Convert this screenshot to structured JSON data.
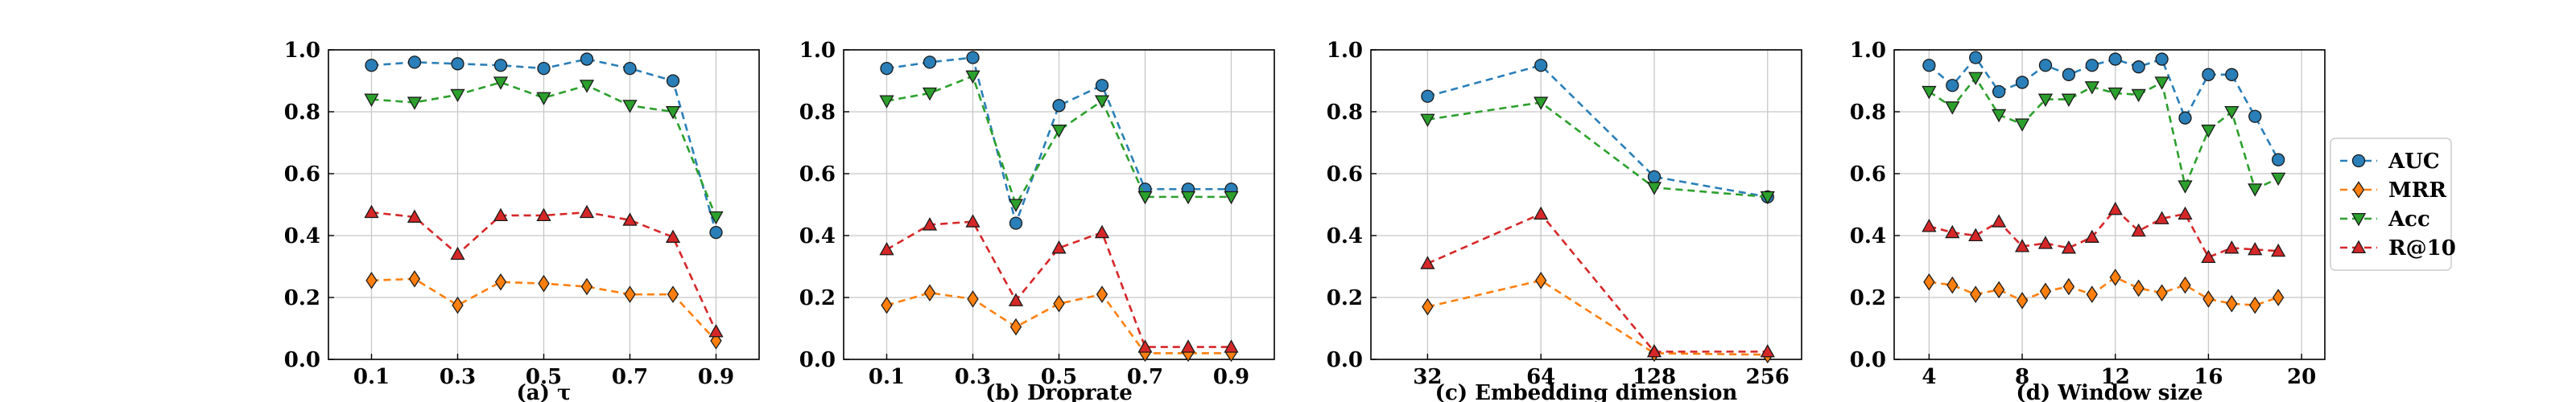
{
  "colors": {
    "AUC": "#2a7fb8",
    "MRR": "#ff7f0e",
    "Acc": "#2ca02c",
    "R@10": "#d62728"
  },
  "legend": [
    {
      "name": "AUC",
      "marker": "circle"
    },
    {
      "name": "MRR",
      "marker": "diamond"
    },
    {
      "name": "Acc",
      "marker": "triangle-down"
    },
    {
      "name": "R@10",
      "marker": "triangle-up"
    }
  ],
  "chart_data": [
    {
      "type": "line",
      "xlabel": "(a) τ",
      "xlim": [
        0.0,
        1.0
      ],
      "ylim": [
        0.0,
        1.0
      ],
      "xticks": [
        0.1,
        0.3,
        0.5,
        0.7,
        0.9
      ],
      "xtick_labels": [
        "0.1",
        "0.3",
        "0.5",
        "0.7",
        "0.9"
      ],
      "yticks": [
        0.0,
        0.2,
        0.4,
        0.6,
        0.8,
        1.0
      ],
      "ytick_labels": [
        "0.0",
        "0.2",
        "0.4",
        "0.6",
        "0.8",
        "1.0"
      ],
      "grid": true,
      "x": [
        0.1,
        0.2,
        0.3,
        0.4,
        0.5,
        0.6,
        0.7,
        0.8,
        0.9
      ],
      "series": [
        {
          "name": "AUC",
          "values": [
            0.95,
            0.96,
            0.955,
            0.95,
            0.94,
            0.97,
            0.94,
            0.9,
            0.41
          ]
        },
        {
          "name": "MRR",
          "values": [
            0.255,
            0.26,
            0.175,
            0.25,
            0.245,
            0.235,
            0.21,
            0.21,
            0.06
          ]
        },
        {
          "name": "Acc",
          "values": [
            0.84,
            0.83,
            0.855,
            0.895,
            0.845,
            0.885,
            0.82,
            0.8,
            0.46
          ]
        },
        {
          "name": "R@10",
          "values": [
            0.475,
            0.46,
            0.34,
            0.465,
            0.465,
            0.475,
            0.45,
            0.395,
            0.09
          ]
        }
      ]
    },
    {
      "type": "line",
      "xlabel": "(b) Droprate",
      "xlim": [
        0.0,
        1.0
      ],
      "ylim": [
        0.0,
        1.0
      ],
      "xticks": [
        0.1,
        0.3,
        0.5,
        0.7,
        0.9
      ],
      "xtick_labels": [
        "0.1",
        "0.3",
        "0.5",
        "0.7",
        "0.9"
      ],
      "yticks": [
        0.0,
        0.2,
        0.4,
        0.6,
        0.8,
        1.0
      ],
      "ytick_labels": [
        "0.0",
        "0.2",
        "0.4",
        "0.6",
        "0.8",
        "1.0"
      ],
      "grid": true,
      "x": [
        0.1,
        0.2,
        0.3,
        0.4,
        0.5,
        0.6,
        0.7,
        0.8,
        0.9
      ],
      "series": [
        {
          "name": "AUC",
          "values": [
            0.94,
            0.96,
            0.975,
            0.44,
            0.82,
            0.885,
            0.55,
            0.55,
            0.55
          ]
        },
        {
          "name": "MRR",
          "values": [
            0.175,
            0.215,
            0.195,
            0.105,
            0.18,
            0.21,
            0.02,
            0.02,
            0.02
          ]
        },
        {
          "name": "Acc",
          "values": [
            0.835,
            0.86,
            0.915,
            0.5,
            0.74,
            0.835,
            0.525,
            0.525,
            0.525
          ]
        },
        {
          "name": "R@10",
          "values": [
            0.355,
            0.435,
            0.445,
            0.19,
            0.36,
            0.41,
            0.04,
            0.04,
            0.04
          ]
        }
      ]
    },
    {
      "type": "line",
      "xlabel": "(c) Embedding dimension",
      "xscale": "categorical",
      "xlim": [
        -0.5,
        3.3
      ],
      "ylim": [
        0.0,
        1.0
      ],
      "xticks": [
        0,
        1,
        2,
        3
      ],
      "xtick_labels": [
        "32",
        "64",
        "128",
        "256"
      ],
      "yticks": [
        0.0,
        0.2,
        0.4,
        0.6,
        0.8,
        1.0
      ],
      "ytick_labels": [
        "0.0",
        "0.2",
        "0.4",
        "0.6",
        "0.8",
        "1.0"
      ],
      "grid": true,
      "x": [
        0,
        1,
        2,
        3
      ],
      "series": [
        {
          "name": "AUC",
          "values": [
            0.85,
            0.95,
            0.59,
            0.525
          ]
        },
        {
          "name": "MRR",
          "values": [
            0.17,
            0.255,
            0.02,
            0.015
          ]
        },
        {
          "name": "Acc",
          "values": [
            0.775,
            0.83,
            0.555,
            0.525
          ]
        },
        {
          "name": "R@10",
          "values": [
            0.31,
            0.47,
            0.025,
            0.025
          ]
        }
      ]
    },
    {
      "type": "line",
      "xlabel": "(d) Window size",
      "xlim": [
        2.5,
        21.0
      ],
      "ylim": [
        0.0,
        1.0
      ],
      "xticks": [
        4,
        8,
        12,
        16,
        20
      ],
      "xtick_labels": [
        "4",
        "8",
        "12",
        "16",
        "20"
      ],
      "yticks": [
        0.0,
        0.2,
        0.4,
        0.6,
        0.8,
        1.0
      ],
      "ytick_labels": [
        "0.0",
        "0.2",
        "0.4",
        "0.6",
        "0.8",
        "1.0"
      ],
      "grid": true,
      "x": [
        4,
        5,
        6,
        7,
        8,
        9,
        10,
        11,
        12,
        13,
        14,
        15,
        16,
        17,
        18,
        19
      ],
      "series": [
        {
          "name": "AUC",
          "values": [
            0.95,
            0.885,
            0.975,
            0.865,
            0.895,
            0.95,
            0.92,
            0.95,
            0.97,
            0.945,
            0.97,
            0.78,
            0.92,
            0.92,
            0.785,
            0.645
          ]
        },
        {
          "name": "MRR",
          "values": [
            0.25,
            0.24,
            0.21,
            0.225,
            0.19,
            0.22,
            0.235,
            0.21,
            0.265,
            0.23,
            0.215,
            0.24,
            0.195,
            0.18,
            0.175,
            0.2
          ]
        },
        {
          "name": "Acc",
          "values": [
            0.865,
            0.815,
            0.91,
            0.79,
            0.76,
            0.84,
            0.84,
            0.88,
            0.86,
            0.855,
            0.895,
            0.56,
            0.74,
            0.8,
            0.55,
            0.585
          ]
        },
        {
          "name": "R@10",
          "values": [
            0.43,
            0.41,
            0.4,
            0.445,
            0.365,
            0.375,
            0.36,
            0.395,
            0.485,
            0.415,
            0.455,
            0.47,
            0.33,
            0.36,
            0.355,
            0.35
          ]
        }
      ]
    }
  ]
}
